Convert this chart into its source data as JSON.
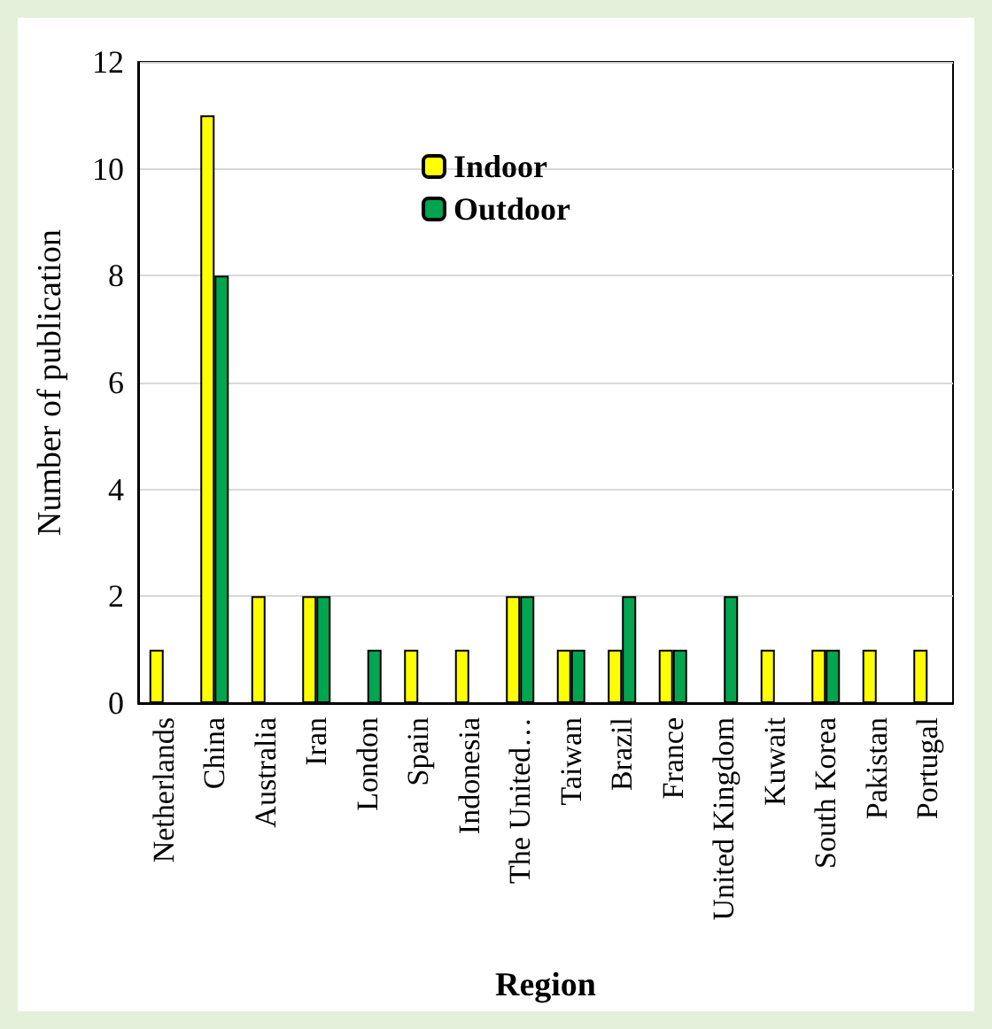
{
  "chart_data": {
    "type": "bar",
    "xlabel": "Region",
    "ylabel": "Number of publication",
    "categories": [
      "Netherlands",
      "China",
      "Australia",
      "Iran",
      "London",
      "Spain",
      "Indonesia",
      "The United…",
      "Taiwan",
      "Brazil",
      "France",
      "United Kingdom",
      "Kuwait",
      "South Korea",
      "Pakistan",
      "Portugal"
    ],
    "series": [
      {
        "name": "Indoor",
        "color": "#ffff00",
        "values": [
          1,
          11,
          2,
          2,
          0,
          1,
          1,
          2,
          1,
          1,
          1,
          0,
          1,
          1,
          1,
          1
        ]
      },
      {
        "name": "Outdoor",
        "color": "#00a550",
        "values": [
          0,
          8,
          0,
          2,
          1,
          0,
          0,
          2,
          1,
          2,
          1,
          2,
          0,
          1,
          0,
          0
        ]
      }
    ],
    "ylim": [
      0,
      12
    ],
    "yticks": [
      0,
      2,
      4,
      6,
      8,
      10,
      12
    ],
    "grid": "y",
    "legend": "top"
  }
}
